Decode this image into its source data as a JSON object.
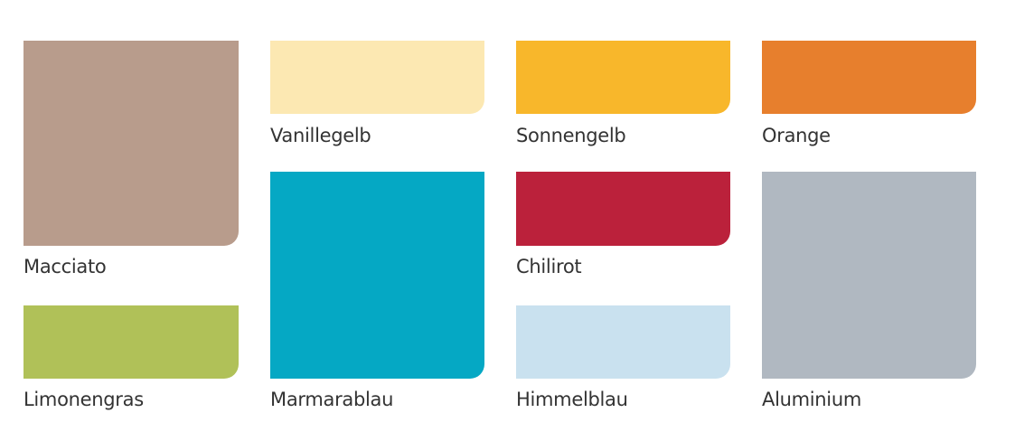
{
  "swatches": [
    {
      "name": "Macciato",
      "color": "#b89c8c"
    },
    {
      "name": "Limonengras",
      "color": "#b0c158"
    },
    {
      "name": "Vanillegelb",
      "color": "#fce8b2"
    },
    {
      "name": "Marmarablau",
      "color": "#05a8c4"
    },
    {
      "name": "Sonnengelb",
      "color": "#f8b72b"
    },
    {
      "name": "Chilirot",
      "color": "#bb213b"
    },
    {
      "name": "Himmelblau",
      "color": "#c9e1ef"
    },
    {
      "name": "Orange",
      "color": "#e77f2d"
    },
    {
      "name": "Aluminium",
      "color": "#b0b8c1"
    }
  ]
}
